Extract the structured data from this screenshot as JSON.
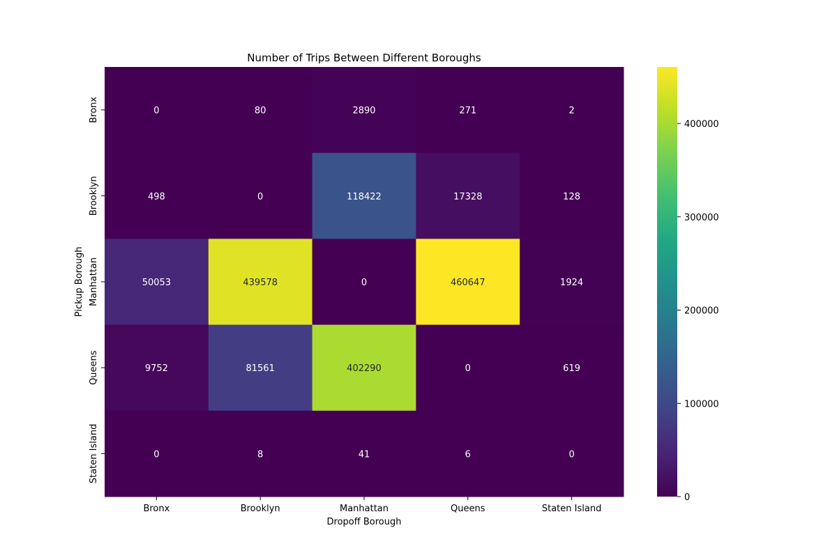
{
  "chart_data": {
    "type": "heatmap",
    "title": "Number of Trips Between Different Boroughs",
    "xlabel": "Dropoff Borough",
    "ylabel": "Pickup Borough",
    "x_categories": [
      "Bronx",
      "Brooklyn",
      "Manhattan",
      "Queens",
      "Staten Island"
    ],
    "y_categories": [
      "Bronx",
      "Brooklyn",
      "Manhattan",
      "Queens",
      "Staten Island"
    ],
    "values": [
      [
        0,
        80,
        2890,
        271,
        2
      ],
      [
        498,
        0,
        118422,
        17328,
        128
      ],
      [
        50053,
        439578,
        0,
        460647,
        1924
      ],
      [
        9752,
        81561,
        402290,
        0,
        619
      ],
      [
        0,
        8,
        41,
        6,
        0
      ]
    ],
    "colormap": "viridis",
    "colorbar": {
      "range": [
        0,
        460647
      ],
      "ticks": [
        0,
        100000,
        200000,
        300000,
        400000
      ],
      "tick_labels": [
        "0",
        "100000",
        "200000",
        "300000",
        "400000"
      ]
    }
  }
}
